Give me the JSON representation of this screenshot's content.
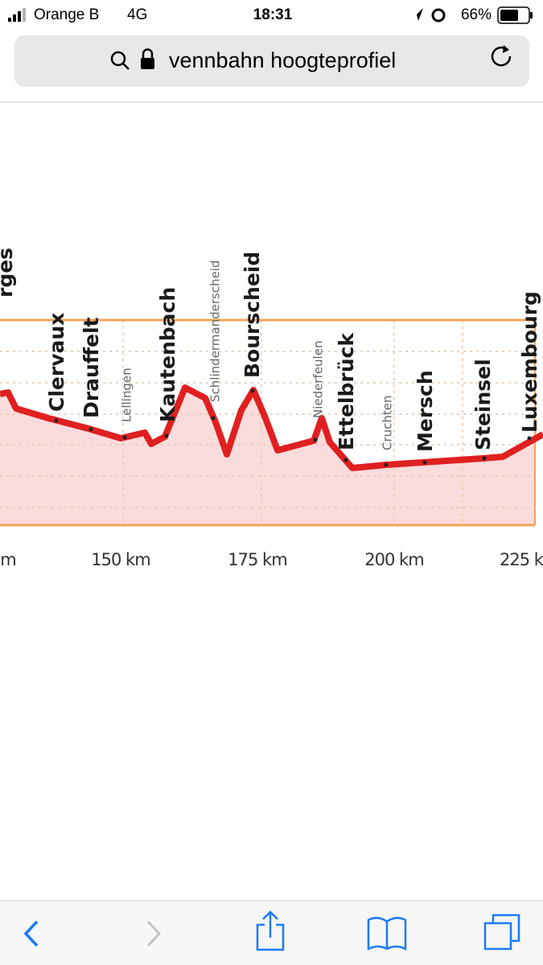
{
  "status_bar": {
    "carrier": "Orange B",
    "network": "4G",
    "time": "18:31",
    "battery": "66%"
  },
  "address_bar": {
    "query": "vennbahn hoogteprofiel"
  },
  "image": {
    "places": [
      "rges",
      "Clervaux",
      "Drauffelt",
      "Lellingen",
      "Kautenbach",
      "Schlindermanderscheid",
      "Bourscheid",
      "Niederfeulen",
      "Ettelbrück",
      "Cruchten",
      "Mersch",
      "Steinsel",
      "Luxembourg"
    ],
    "distance_labels": [
      "m",
      "150 km",
      "175 km",
      "200 km",
      "225 k"
    ]
  }
}
